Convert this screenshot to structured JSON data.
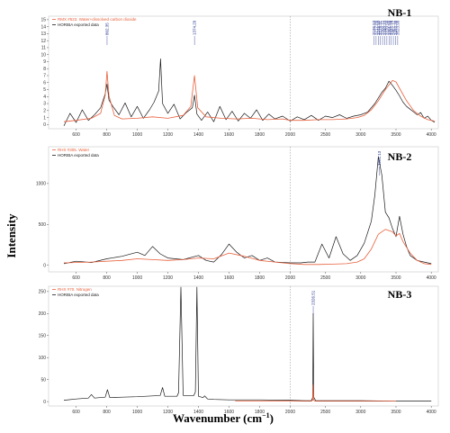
{
  "figure": {
    "ylabel": "Intensity",
    "xlabel_main": "Wavenumber (cm",
    "xlabel_sup": "−1",
    "xlabel_end": ")"
  },
  "chart_data": [
    {
      "type": "line",
      "title": "NB-1",
      "xlim": [
        420,
        4100
      ],
      "ylim": [
        -0.6,
        15.5
      ],
      "xticks": [
        600,
        800,
        1000,
        1200,
        1400,
        1600,
        1800,
        2000,
        2500,
        3000,
        3500,
        4000
      ],
      "yticks": [
        0,
        1,
        2,
        3,
        4,
        5,
        6,
        7,
        8,
        9,
        10,
        11,
        12,
        13,
        14,
        15
      ],
      "vline": 2000,
      "legend": [
        "RMX #523. Water+dissolved carbon dioxide",
        "HORIBA exported data"
      ],
      "peak_labels": [
        {
          "x": 802.35,
          "text": "802.35"
        },
        {
          "x": 1374.29,
          "text": "1374.29"
        },
        {
          "x": 3186.53,
          "text": "3186.53"
        },
        {
          "x": 3217.89,
          "text": "3217.89"
        },
        {
          "x": 3248.5,
          "text": "3248.50"
        },
        {
          "x": 3279.11,
          "text": "3279.11"
        },
        {
          "x": 3309.72,
          "text": "3309.72"
        },
        {
          "x": 3340.33,
          "text": "3340.33"
        },
        {
          "x": 3370.94,
          "text": "3370.94"
        },
        {
          "x": 3401.55,
          "text": "3401.55"
        },
        {
          "x": 3432.16,
          "text": "3432.16"
        },
        {
          "x": 3462.77,
          "text": "3462.77"
        },
        {
          "x": 3493.38,
          "text": "3493.38"
        },
        {
          "x": 3523.99,
          "text": "3523.99"
        }
      ],
      "series": [
        {
          "name": "HORIBA exported data",
          "color": "#1a1a1a",
          "x": [
            520,
            560,
            600,
            640,
            680,
            720,
            760,
            790,
            802,
            815,
            840,
            880,
            920,
            960,
            1000,
            1040,
            1080,
            1110,
            1140,
            1152,
            1165,
            1200,
            1240,
            1280,
            1320,
            1360,
            1374,
            1390,
            1420,
            1460,
            1500,
            1540,
            1580,
            1620,
            1660,
            1700,
            1740,
            1780,
            1820,
            1860,
            1900,
            1950,
            2000,
            2100,
            2200,
            2300,
            2400,
            2500,
            2600,
            2700,
            2800,
            2900,
            3000,
            3100,
            3200,
            3250,
            3300,
            3350,
            3400,
            3450,
            3500,
            3550,
            3600,
            3650,
            3700,
            3750,
            3800,
            3850,
            3900,
            3950,
            4000,
            4050
          ],
          "y": [
            -0.2,
            1.6,
            0.3,
            2.1,
            0.6,
            1.4,
            2.4,
            4.4,
            5.8,
            3.5,
            2.6,
            1.4,
            3.1,
            1.1,
            2.6,
            0.9,
            2.1,
            3.2,
            4.8,
            9.4,
            3.0,
            1.6,
            2.9,
            0.8,
            1.7,
            2.4,
            4.2,
            1.5,
            0.6,
            1.8,
            0.4,
            2.6,
            0.7,
            1.9,
            0.5,
            1.6,
            0.9,
            2.1,
            0.6,
            1.5,
            0.8,
            1.2,
            0.5,
            1.1,
            0.7,
            1.3,
            0.6,
            1.2,
            1.0,
            1.4,
            0.9,
            1.2,
            1.4,
            1.8,
            3.0,
            3.8,
            4.6,
            5.2,
            6.2,
            5.6,
            4.9,
            4.1,
            3.2,
            2.6,
            2.2,
            1.8,
            1.4,
            1.7,
            0.9,
            1.2,
            0.6,
            0.3
          ]
        },
        {
          "name": "RMX #523. Water+dissolved carbon dioxide",
          "color": "#e8603c",
          "x": [
            520,
            600,
            700,
            760,
            790,
            802,
            815,
            850,
            900,
            1000,
            1100,
            1200,
            1300,
            1350,
            1374,
            1395,
            1450,
            1550,
            1650,
            1750,
            1850,
            1950,
            2000,
            2200,
            2400,
            2600,
            2800,
            2950,
            3050,
            3150,
            3250,
            3350,
            3450,
            3500,
            3550,
            3650,
            3750,
            3850,
            3950,
            4050
          ],
          "y": [
            0.4,
            0.6,
            0.9,
            1.6,
            4.2,
            7.6,
            4.1,
            1.3,
            0.8,
            0.9,
            1.1,
            0.9,
            1.3,
            2.6,
            7.0,
            2.4,
            1.1,
            0.9,
            0.8,
            0.9,
            0.7,
            0.8,
            0.6,
            0.6,
            0.7,
            0.7,
            0.8,
            1.0,
            1.3,
            2.1,
            3.4,
            5.0,
            6.3,
            6.1,
            5.2,
            3.4,
            2.0,
            1.2,
            0.7,
            0.5
          ]
        }
      ]
    },
    {
      "type": "line",
      "title": "NB-2",
      "xlim": [
        420,
        4100
      ],
      "ylim": [
        -80,
        1450
      ],
      "xticks": [
        600,
        800,
        1000,
        1200,
        1400,
        1600,
        1800,
        2000,
        2500,
        3000,
        3500,
        4000
      ],
      "yticks": [
        0,
        500,
        1000
      ],
      "vline": 2000,
      "legend": [
        "RHX #305. Water",
        "HORIBA exported data"
      ],
      "peak_labels": [
        {
          "x": 3261.13,
          "text": "3261.13"
        }
      ],
      "series": [
        {
          "name": "HORIBA exported data",
          "color": "#1a1a1a",
          "x": [
            520,
            600,
            700,
            800,
            900,
            1000,
            1050,
            1100,
            1150,
            1200,
            1300,
            1400,
            1450,
            1500,
            1550,
            1600,
            1650,
            1700,
            1750,
            1800,
            1850,
            1900,
            2000,
            2150,
            2250,
            2350,
            2450,
            2550,
            2650,
            2750,
            2850,
            2950,
            3050,
            3150,
            3200,
            3250,
            3300,
            3350,
            3400,
            3450,
            3500,
            3550,
            3600,
            3650,
            3700,
            3800,
            3900,
            4000
          ],
          "y": [
            20,
            50,
            35,
            80,
            110,
            160,
            120,
            230,
            140,
            90,
            70,
            120,
            60,
            40,
            130,
            260,
            160,
            90,
            120,
            60,
            90,
            40,
            30,
            30,
            40,
            40,
            260,
            90,
            350,
            140,
            60,
            120,
            270,
            540,
            860,
            1330,
            1100,
            650,
            580,
            450,
            350,
            600,
            380,
            230,
            120,
            60,
            40,
            20
          ]
        },
        {
          "name": "RHX #305. Water",
          "color": "#e8603c",
          "x": [
            520,
            700,
            900,
            1000,
            1100,
            1200,
            1300,
            1400,
            1500,
            1600,
            1700,
            1800,
            1900,
            2000,
            2200,
            2400,
            2600,
            2800,
            2950,
            3050,
            3150,
            3250,
            3350,
            3450,
            3500,
            3550,
            3600,
            3700,
            3800,
            3900,
            4000
          ],
          "y": [
            30,
            40,
            60,
            80,
            70,
            60,
            70,
            90,
            80,
            150,
            110,
            60,
            40,
            20,
            10,
            10,
            15,
            20,
            40,
            80,
            200,
            380,
            440,
            410,
            360,
            390,
            290,
            150,
            60,
            20,
            10
          ]
        }
      ]
    },
    {
      "type": "line",
      "title": "NB-3",
      "xlim": [
        420,
        4100
      ],
      "ylim": [
        -10,
        262
      ],
      "xticks": [
        600,
        800,
        1000,
        1200,
        1400,
        1600,
        1800,
        2000,
        2500,
        3000,
        3500,
        4000
      ],
      "yticks": [
        0,
        50,
        100,
        150,
        200,
        250
      ],
      "vline": 2000,
      "legend": [
        "RHX #70. Nitrogen",
        "HORIBA exported data"
      ],
      "peak_labels": [
        {
          "x": 2326.51,
          "text": "2326.51"
        }
      ],
      "series": [
        {
          "name": "HORIBA exported data",
          "color": "#1a1a1a",
          "x": [
            520,
            600,
            680,
            700,
            720,
            790,
            805,
            820,
            900,
            1000,
            1100,
            1150,
            1165,
            1180,
            1260,
            1270,
            1285,
            1300,
            1370,
            1380,
            1390,
            1400,
            1430,
            1440,
            1460,
            1500,
            1600,
            1800,
            2000,
            2200,
            2300,
            2320,
            2326,
            2334,
            2360,
            2500,
            3000,
            3500,
            4000
          ],
          "y": [
            3,
            6,
            8,
            16,
            8,
            10,
            27,
            9,
            10,
            11,
            13,
            14,
            32,
            12,
            12,
            20,
            260,
            14,
            14,
            22,
            260,
            12,
            9,
            13,
            6,
            5,
            4,
            4,
            3,
            2,
            2,
            10,
            200,
            10,
            2,
            2,
            2,
            1,
            1
          ]
        },
        {
          "name": "RHX #70. Nitrogen",
          "color": "#e8603c",
          "x": [
            1640,
            1800,
            2000,
            2200,
            2300,
            2318,
            2326,
            2334,
            2350,
            2500,
            3000,
            3500
          ],
          "y": [
            1,
            1,
            1,
            1,
            1,
            3,
            38,
            3,
            1,
            1,
            1,
            1
          ]
        }
      ]
    }
  ]
}
